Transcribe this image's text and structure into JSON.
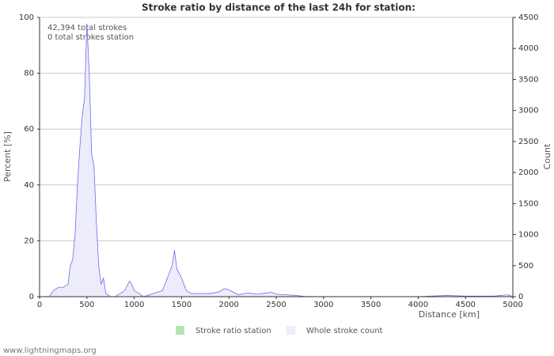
{
  "chart_data": {
    "type": "area",
    "title": "Stroke ratio by distance of the last 24h for station:",
    "x_label": "Distance   [km]",
    "y_label": "Percent   [%]",
    "y2_label": "Count",
    "annotations": [
      "42,394 total strokes",
      "0 total strokes station"
    ],
    "footer": "www.lightningmaps.org",
    "x": [
      0,
      100,
      150,
      200,
      250,
      300,
      325,
      350,
      375,
      400,
      425,
      450,
      475,
      500,
      525,
      550,
      575,
      600,
      625,
      650,
      675,
      700,
      750,
      800,
      900,
      950,
      975,
      1000,
      1050,
      1100,
      1200,
      1300,
      1350,
      1400,
      1425,
      1450,
      1500,
      1550,
      1600,
      1700,
      1800,
      1900,
      1950,
      2000,
      2100,
      2200,
      2300,
      2400,
      2450,
      2500,
      2600,
      2700,
      2800,
      3000,
      3500,
      4000,
      4300,
      4500,
      4800,
      4950,
      5000
    ],
    "series": [
      {
        "name": "Stroke ratio station",
        "color": "#b3e6b3",
        "values": [
          null,
          null,
          null,
          null,
          null,
          null,
          null,
          null,
          null,
          null,
          null,
          null,
          null,
          null,
          null,
          null,
          null,
          null,
          null,
          null,
          null,
          null,
          null,
          null,
          null,
          null,
          null,
          null,
          null,
          null,
          null,
          null,
          null,
          null,
          null,
          null,
          null,
          null,
          null,
          null,
          null,
          null,
          null,
          null,
          null,
          null,
          null,
          null,
          null,
          null,
          null,
          null,
          null,
          null,
          null,
          null,
          null,
          null,
          null,
          null,
          null
        ]
      },
      {
        "name": "Whole stroke count",
        "color": "#ececfb",
        "line_color": "#6c6cea",
        "axis": "y2",
        "values": [
          0,
          0,
          100,
          150,
          150,
          200,
          500,
          600,
          1000,
          1800,
          2400,
          2900,
          3200,
          4400,
          3600,
          2300,
          2100,
          1200,
          500,
          200,
          300,
          50,
          0,
          0,
          100,
          250,
          200,
          100,
          50,
          0,
          50,
          100,
          300,
          500,
          750,
          450,
          300,
          100,
          50,
          50,
          50,
          80,
          130,
          110,
          30,
          60,
          40,
          60,
          70,
          40,
          30,
          20,
          5,
          0,
          0,
          0,
          20,
          10,
          10,
          30,
          0
        ]
      }
    ],
    "xlim": [
      0,
      5000
    ],
    "xticks": [
      0,
      500,
      1000,
      1500,
      2000,
      2500,
      3000,
      3500,
      4000,
      4500,
      5000
    ],
    "ylim": [
      0,
      100
    ],
    "yticks": [
      0,
      20,
      40,
      60,
      80,
      100
    ],
    "y2lim": [
      0,
      4500
    ],
    "y2ticks": [
      0,
      500,
      1000,
      1500,
      2000,
      2500,
      3000,
      3500,
      4000,
      4500
    ],
    "grid": true
  }
}
